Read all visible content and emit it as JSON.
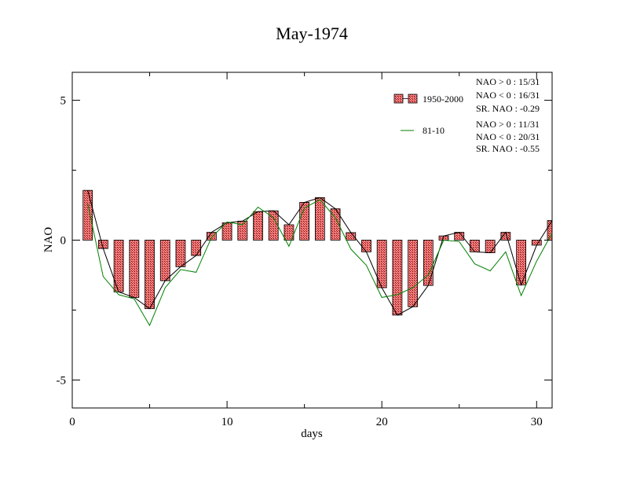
{
  "chart_data": {
    "type": "bar",
    "title": "May-1974",
    "xlabel": "days",
    "ylabel": "NAO",
    "xlim": [
      0,
      31
    ],
    "ylim": [
      -6,
      6
    ],
    "x_ticks": [
      0,
      10,
      20,
      30
    ],
    "y_ticks": [
      -5,
      0,
      5
    ],
    "x_tick_labels": [
      "0",
      "10",
      "20",
      "30"
    ],
    "y_tick_labels": [
      "-5",
      "0",
      "5"
    ],
    "grid": false,
    "legend_position": "top-right",
    "x": [
      1,
      2,
      3,
      4,
      5,
      6,
      7,
      8,
      9,
      10,
      11,
      12,
      13,
      14,
      15,
      16,
      17,
      18,
      19,
      20,
      21,
      22,
      23,
      24,
      25,
      26,
      27,
      28,
      29,
      30,
      31
    ],
    "series": [
      {
        "name": "1950-2000",
        "kind": "bar",
        "fill": "#f08080",
        "line_color": "#000000",
        "values": [
          1.78,
          -0.3,
          -1.85,
          -2.05,
          -2.45,
          -1.45,
          -0.95,
          -0.55,
          0.28,
          0.62,
          0.68,
          1.02,
          1.05,
          0.55,
          1.35,
          1.52,
          1.12,
          0.27,
          -0.42,
          -1.7,
          -2.68,
          -2.38,
          -1.62,
          0.15,
          0.28,
          -0.42,
          -0.45,
          0.28,
          -1.6,
          -0.18,
          0.7
        ]
      },
      {
        "name": "81-10",
        "kind": "line",
        "color": "#008000",
        "values": [
          1.3,
          -1.3,
          -1.95,
          -2.1,
          -3.05,
          -1.7,
          -1.05,
          -1.15,
          0.1,
          0.65,
          0.55,
          1.18,
          0.8,
          -0.22,
          1.15,
          1.45,
          0.8,
          -0.32,
          -0.9,
          -2.05,
          -1.95,
          -1.7,
          -1.25,
          0.0,
          -0.05,
          -0.85,
          -1.1,
          -0.42,
          -1.98,
          -0.75,
          0.25
        ]
      }
    ],
    "stats": [
      [
        "NAO > 0 : 15/31",
        "NAO < 0 : 16/31",
        "SR. NAO : -0.29"
      ],
      [
        "NAO > 0 : 11/31",
        "NAO < 0 : 20/31",
        "SR. NAO : -0.55"
      ]
    ]
  }
}
